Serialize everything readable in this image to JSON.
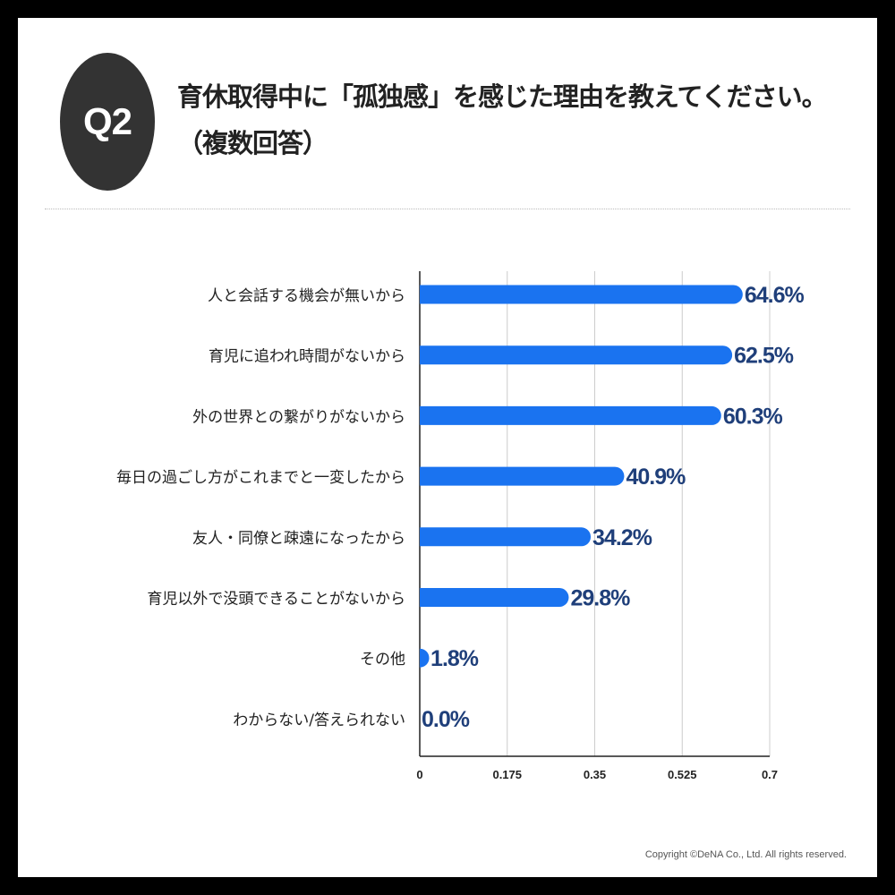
{
  "header": {
    "badge": "Q2",
    "title_line1": "育休取得中に「孤独感」を感じた理由を教えてください。",
    "title_line2": "（複数回答）"
  },
  "footer": {
    "copyright": "Copyright ©DeNA Co., Ltd. All rights reserved."
  },
  "chart_data": {
    "type": "bar",
    "orientation": "horizontal",
    "categories": [
      "人と会話する機会が無いから",
      "育児に追われ時間がないから",
      "外の世界との繋がりがないから",
      "毎日の過ごし方がこれまでと一変したから",
      "友人・同僚と疎遠になったから",
      "育児以外で没頭できることがないから",
      "その他",
      "わからない/答えられない"
    ],
    "values": [
      0.646,
      0.625,
      0.603,
      0.409,
      0.342,
      0.298,
      0.018,
      0.0
    ],
    "data_labels": [
      "64.6%",
      "62.5%",
      "60.3%",
      "40.9%",
      "34.2%",
      "29.8%",
      "1.8%",
      "0.0%"
    ],
    "x_ticks": [
      0,
      0.175,
      0.35,
      0.525,
      0.7
    ],
    "x_tick_labels": [
      "0",
      "0.175",
      "0.35",
      "0.525",
      "0.7"
    ],
    "xlim": [
      0,
      0.7
    ],
    "grid": "vertical",
    "colors": {
      "bar": "#1a73f0",
      "label": "#1f3f7a",
      "category": "#222222"
    }
  }
}
